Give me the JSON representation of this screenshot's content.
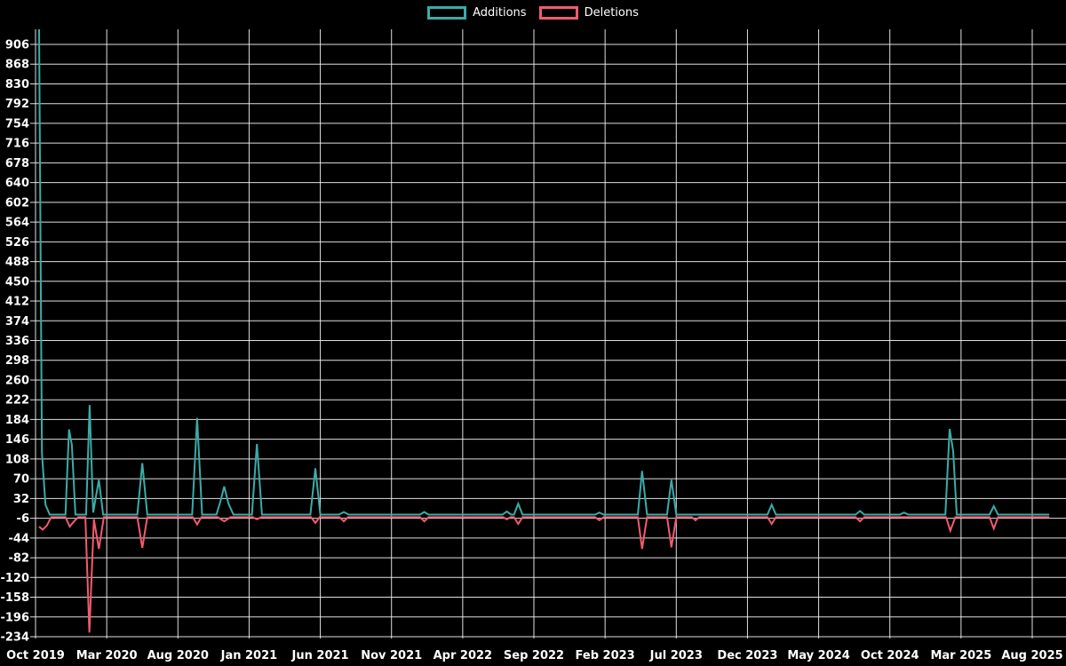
{
  "colors": {
    "background": "#000000",
    "grid": "#f2f2f2",
    "text": "#ffffff",
    "additions": "#3aaca9",
    "deletions": "#f25b70"
  },
  "chart_data": {
    "type": "line",
    "title": "",
    "legend_position": "top-center",
    "grid": true,
    "x_ticks": [
      "Oct 2019",
      "Mar 2020",
      "Aug 2020",
      "Jan 2021",
      "Jun 2021",
      "Nov 2021",
      "Apr 2022",
      "Sep 2022",
      "Feb 2023",
      "Jul 2023",
      "Dec 2023",
      "May 2024",
      "Oct 2024",
      "Mar 2025",
      "Aug 2025"
    ],
    "x_tick_interval_months": 5,
    "y_ticks": [
      906,
      868,
      830,
      792,
      754,
      716,
      678,
      640,
      602,
      564,
      526,
      488,
      450,
      412,
      374,
      336,
      298,
      260,
      222,
      184,
      146,
      108,
      70,
      32,
      -6,
      -44,
      -82,
      -120,
      -158,
      -196,
      -234
    ],
    "y_tick_step": 38,
    "ylim": [
      -234,
      935
    ],
    "x_unit": "months since Oct 2019",
    "series": [
      {
        "name": "Additions",
        "color": "#3aaca9",
        "points": [
          [
            0.25,
            950
          ],
          [
            0.45,
            120
          ],
          [
            0.7,
            20
          ],
          [
            1.0,
            1
          ],
          [
            2.1,
            1
          ],
          [
            2.35,
            165
          ],
          [
            2.55,
            135
          ],
          [
            2.8,
            1
          ],
          [
            3.55,
            1
          ],
          [
            3.8,
            212
          ],
          [
            4.05,
            5
          ],
          [
            4.45,
            68
          ],
          [
            4.75,
            1
          ],
          [
            7.15,
            1
          ],
          [
            7.5,
            100
          ],
          [
            7.85,
            1
          ],
          [
            11.0,
            1
          ],
          [
            11.35,
            187
          ],
          [
            11.7,
            1
          ],
          [
            12.7,
            1
          ],
          [
            13.0,
            28
          ],
          [
            13.25,
            55
          ],
          [
            13.55,
            22
          ],
          [
            13.9,
            1
          ],
          [
            15.2,
            1
          ],
          [
            15.55,
            137
          ],
          [
            15.9,
            1
          ],
          [
            19.3,
            1
          ],
          [
            19.65,
            90
          ],
          [
            20.0,
            1
          ],
          [
            21.3,
            1
          ],
          [
            21.65,
            6
          ],
          [
            22.0,
            1
          ],
          [
            27.0,
            1
          ],
          [
            27.3,
            6
          ],
          [
            27.6,
            1
          ],
          [
            32.8,
            1
          ],
          [
            33.1,
            7
          ],
          [
            33.4,
            1
          ],
          [
            33.6,
            1
          ],
          [
            33.9,
            22
          ],
          [
            34.2,
            1
          ],
          [
            39.3,
            1
          ],
          [
            39.6,
            5
          ],
          [
            39.9,
            1
          ],
          [
            42.3,
            1
          ],
          [
            42.6,
            85
          ],
          [
            42.95,
            1
          ],
          [
            44.35,
            1
          ],
          [
            44.66,
            68
          ],
          [
            45.0,
            1
          ],
          [
            51.4,
            1
          ],
          [
            51.7,
            20
          ],
          [
            52.0,
            1
          ],
          [
            57.6,
            1
          ],
          [
            57.9,
            8
          ],
          [
            58.2,
            1
          ],
          [
            60.7,
            1
          ],
          [
            61.0,
            5
          ],
          [
            61.3,
            1
          ],
          [
            63.9,
            1
          ],
          [
            64.2,
            166
          ],
          [
            64.45,
            123
          ],
          [
            64.7,
            1
          ],
          [
            67.0,
            1
          ],
          [
            67.3,
            17
          ],
          [
            67.6,
            1
          ],
          [
            71.2,
            1
          ]
        ]
      },
      {
        "name": "Deletions",
        "color": "#f25b70",
        "points": [
          [
            0.25,
            -22
          ],
          [
            0.5,
            -28
          ],
          [
            0.8,
            -20
          ],
          [
            1.1,
            -4
          ],
          [
            2.1,
            -4
          ],
          [
            2.4,
            -22
          ],
          [
            2.7,
            -12
          ],
          [
            3.0,
            -4
          ],
          [
            3.5,
            -4
          ],
          [
            3.78,
            -226
          ],
          [
            4.1,
            -8
          ],
          [
            4.45,
            -65
          ],
          [
            4.8,
            -4
          ],
          [
            7.15,
            -4
          ],
          [
            7.5,
            -63
          ],
          [
            7.85,
            -4
          ],
          [
            11.05,
            -4
          ],
          [
            11.35,
            -18
          ],
          [
            11.65,
            -4
          ],
          [
            12.8,
            -4
          ],
          [
            13.25,
            -12
          ],
          [
            13.7,
            -4
          ],
          [
            15.25,
            -4
          ],
          [
            15.55,
            -8
          ],
          [
            15.85,
            -4
          ],
          [
            19.35,
            -4
          ],
          [
            19.65,
            -15
          ],
          [
            19.95,
            -4
          ],
          [
            21.35,
            -4
          ],
          [
            21.65,
            -12
          ],
          [
            21.95,
            -4
          ],
          [
            27.0,
            -4
          ],
          [
            27.3,
            -12
          ],
          [
            27.6,
            -4
          ],
          [
            32.85,
            -4
          ],
          [
            33.1,
            -8
          ],
          [
            33.35,
            -4
          ],
          [
            33.6,
            -4
          ],
          [
            33.9,
            -17
          ],
          [
            34.2,
            -4
          ],
          [
            39.3,
            -4
          ],
          [
            39.6,
            -10
          ],
          [
            39.9,
            -4
          ],
          [
            42.3,
            -4
          ],
          [
            42.6,
            -65
          ],
          [
            42.95,
            -4
          ],
          [
            44.35,
            -4
          ],
          [
            44.66,
            -62
          ],
          [
            45.0,
            -4
          ],
          [
            46.1,
            -4
          ],
          [
            46.35,
            -10
          ],
          [
            46.6,
            -4
          ],
          [
            51.4,
            -4
          ],
          [
            51.7,
            -17
          ],
          [
            52.0,
            -4
          ],
          [
            57.6,
            -4
          ],
          [
            57.9,
            -12
          ],
          [
            58.2,
            -4
          ],
          [
            63.95,
            -4
          ],
          [
            64.25,
            -30
          ],
          [
            64.6,
            -4
          ],
          [
            67.0,
            -4
          ],
          [
            67.3,
            -26
          ],
          [
            67.6,
            -4
          ],
          [
            71.2,
            -4
          ]
        ]
      }
    ]
  }
}
